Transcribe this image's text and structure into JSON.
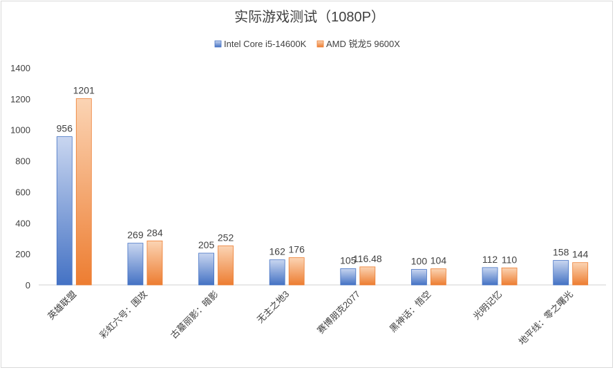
{
  "chart_data": {
    "type": "bar",
    "title": "实际游戏测试（1080P）",
    "categories": [
      "英雄联盟",
      "彩虹六号：围攻",
      "古墓丽影：暗影",
      "无主之地3",
      "赛博朋克2077",
      "黑神话：悟空",
      "光明记忆",
      "地平线：零之曙光"
    ],
    "series": [
      {
        "name": "Intel Core i5-14600K",
        "values": [
          956,
          269,
          205,
          162,
          105,
          100,
          112,
          158
        ],
        "labels": [
          "956",
          "269",
          "205",
          "162",
          "105",
          "100",
          "112",
          "158"
        ]
      },
      {
        "name": "AMD 锐龙5 9600X",
        "values": [
          1201,
          284,
          252,
          176,
          116.48,
          104,
          110,
          144
        ],
        "labels": [
          "1201",
          "284",
          "252",
          "176",
          "116.48",
          "104",
          "110",
          "144"
        ]
      }
    ],
    "ylim": [
      0,
      1400
    ],
    "yticks": [
      0,
      200,
      400,
      600,
      800,
      1000,
      1200,
      1400
    ],
    "legend_position": "top-center",
    "grid": false,
    "colors": {
      "series1_dark": "#4472c4",
      "series1_light": "#c9d6f0",
      "series2_dark": "#ed7d31",
      "series2_light": "#fbd4b4"
    }
  }
}
